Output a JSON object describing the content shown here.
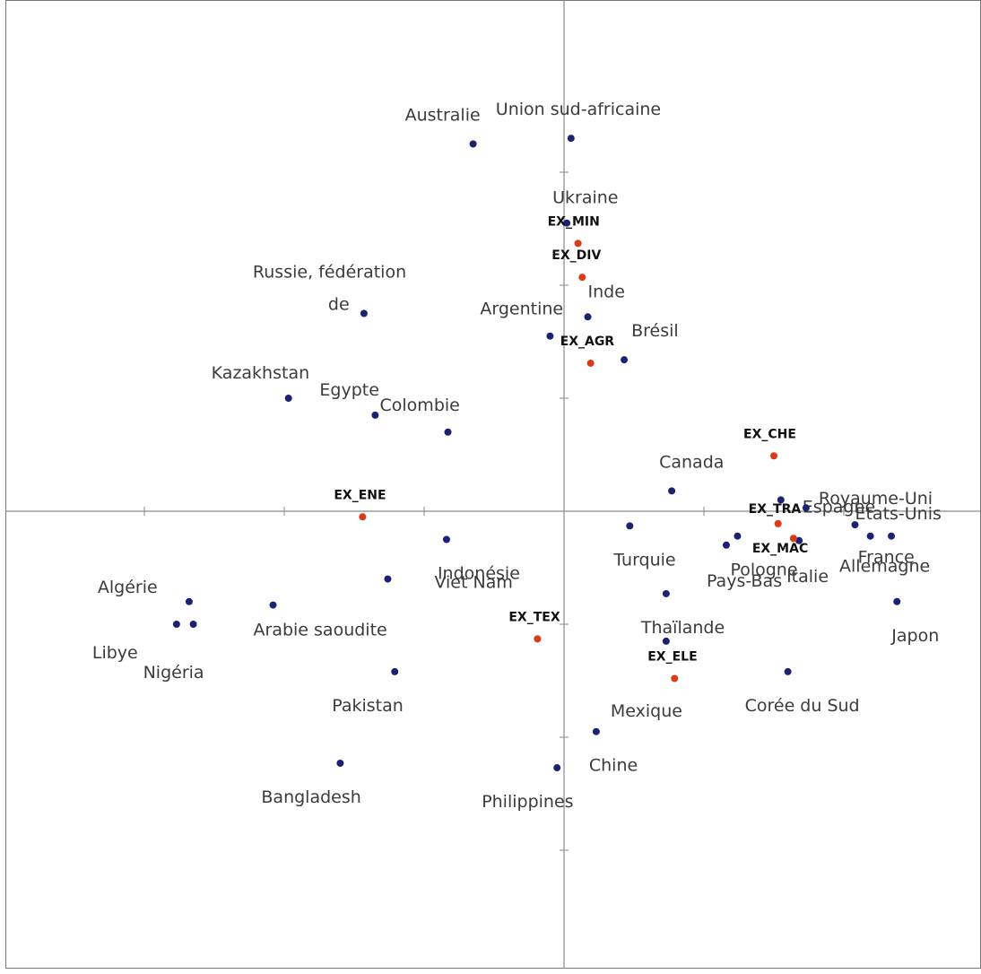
{
  "colors": {
    "country": "#1b2270",
    "variable": "#dd3a1a",
    "axis": "#8a8a8a",
    "frame": "#777777"
  },
  "chart_data": {
    "type": "scatter",
    "title": "",
    "xlabel": "",
    "ylabel": "",
    "xlim": [
      -4.0,
      3.0
    ],
    "ylim": [
      -3.25,
      3.65
    ],
    "xticks": [
      -3,
      -2,
      -1,
      0,
      1,
      2,
      3
    ],
    "yticks": [
      -3,
      -2,
      -1,
      0,
      1,
      2,
      3
    ],
    "axis_cross": [
      0,
      0
    ],
    "grid": false,
    "legend": "none",
    "series": [
      {
        "kind": "country",
        "points": [
          {
            "label": "Australie",
            "x": -0.65,
            "y": 3.25
          },
          {
            "label": "Union sud-africaine",
            "x": 0.05,
            "y": 3.3
          },
          {
            "label": "Ukraine",
            "x": 0.02,
            "y": 2.55
          },
          {
            "label": "Inde",
            "x": 0.17,
            "y": 1.72
          },
          {
            "label": "Argentine",
            "x": -0.1,
            "y": 1.55
          },
          {
            "label": "Brésil",
            "x": 0.43,
            "y": 1.34
          },
          {
            "label": "Russie, fédération de",
            "x": -1.43,
            "y": 1.75
          },
          {
            "label": "Kazakhstan",
            "x": -1.97,
            "y": 1.0
          },
          {
            "label": "Egypte",
            "x": -1.35,
            "y": 0.85
          },
          {
            "label": "Colombie",
            "x": -0.83,
            "y": 0.7
          },
          {
            "label": "Canada",
            "x": 0.77,
            "y": 0.18
          },
          {
            "label": "Espagne",
            "x": 1.55,
            "y": 0.1
          },
          {
            "label": "Royaume-Uni",
            "x": 1.73,
            "y": 0.03
          },
          {
            "label": "Etats-Unis",
            "x": 2.08,
            "y": -0.12
          },
          {
            "label": "France",
            "x": 2.19,
            "y": -0.22
          },
          {
            "label": "Allemagne",
            "x": 2.34,
            "y": -0.22
          },
          {
            "label": "Pologne",
            "x": 1.24,
            "y": -0.22
          },
          {
            "label": "Pays-Bas",
            "x": 1.16,
            "y": -0.3
          },
          {
            "label": "Italie",
            "x": 1.68,
            "y": -0.26
          },
          {
            "label": "Turquie",
            "x": 0.47,
            "y": -0.13
          },
          {
            "label": "Japon",
            "x": 2.38,
            "y": -0.8
          },
          {
            "label": "Thaïlande",
            "x": 0.73,
            "y": -0.73
          },
          {
            "label": "Mexique",
            "x": 0.73,
            "y": -1.15
          },
          {
            "label": "Corée du Sud",
            "x": 1.6,
            "y": -1.42
          },
          {
            "label": "Chine",
            "x": 0.23,
            "y": -1.95
          },
          {
            "label": "Philippines",
            "x": -0.05,
            "y": -2.27
          },
          {
            "label": "Bangladesh",
            "x": -1.6,
            "y": -2.23
          },
          {
            "label": "Pakistan",
            "x": -1.21,
            "y": -1.42
          },
          {
            "label": "Indonésie",
            "x": -0.84,
            "y": -0.25
          },
          {
            "label": "Viet Nam",
            "x": -1.26,
            "y": -0.6
          },
          {
            "label": "Algérie",
            "x": -2.68,
            "y": -0.8
          },
          {
            "label": "Arabie saoudite",
            "x": -2.08,
            "y": -0.83
          },
          {
            "label": "Libye",
            "x": -2.77,
            "y": -1.0
          },
          {
            "label": "Nigéria",
            "x": -2.65,
            "y": -1.0
          }
        ]
      },
      {
        "kind": "variable",
        "points": [
          {
            "label": "EX_MIN",
            "x": 0.1,
            "y": 2.37
          },
          {
            "label": "EX_DIV",
            "x": 0.13,
            "y": 2.07
          },
          {
            "label": "EX_AGR",
            "x": 0.19,
            "y": 1.31
          },
          {
            "label": "EX_CHE",
            "x": 1.5,
            "y": 0.49
          },
          {
            "label": "EX_ENE",
            "x": -1.44,
            "y": -0.05
          },
          {
            "label": "EX_TRA",
            "x": 1.53,
            "y": -0.11
          },
          {
            "label": "EX_MAC",
            "x": 1.64,
            "y": -0.24
          },
          {
            "label": "EX_TEX",
            "x": -0.19,
            "y": -1.13
          },
          {
            "label": "EX_ELE",
            "x": 0.79,
            "y": -1.48
          }
        ]
      }
    ]
  }
}
